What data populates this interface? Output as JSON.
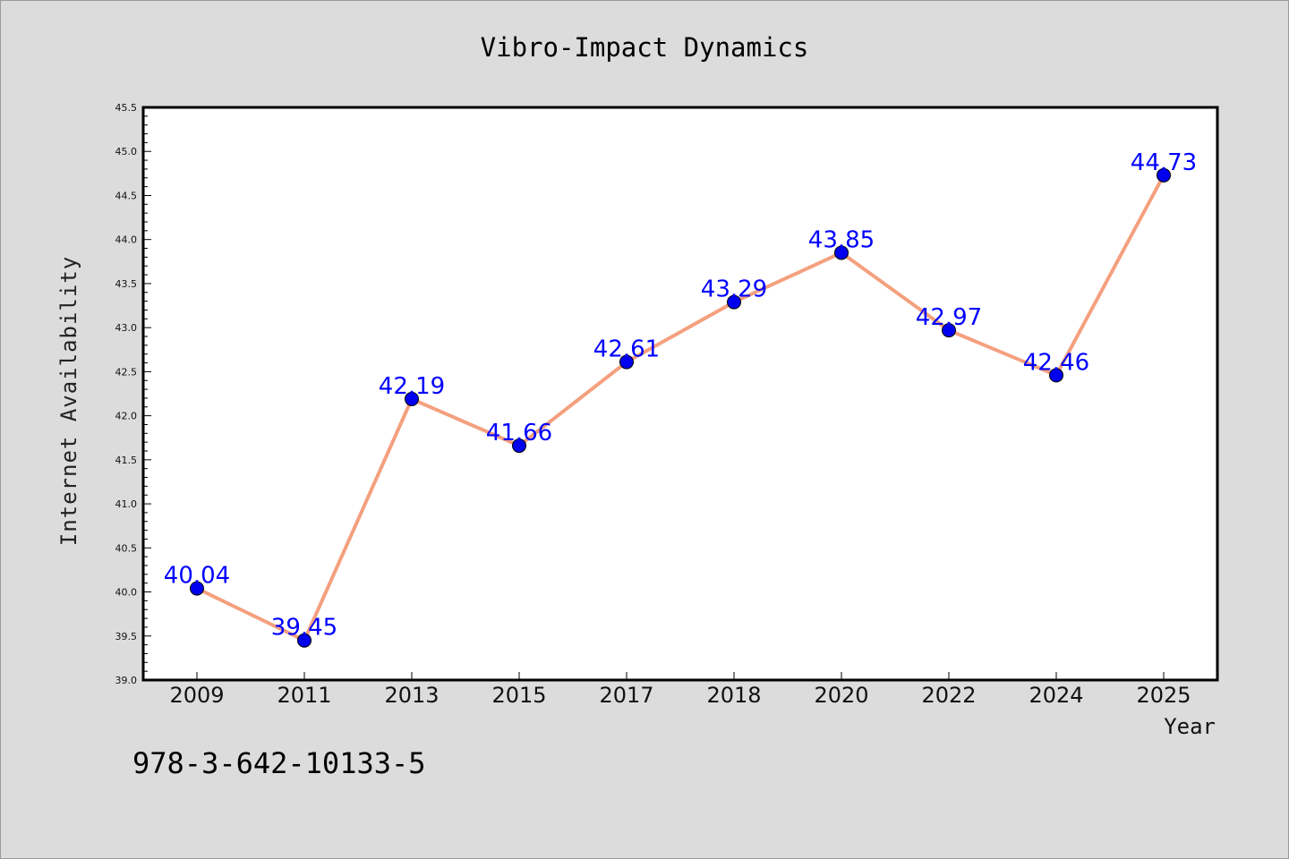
{
  "chart_data": {
    "type": "line",
    "title": "Vibro-Impact Dynamics",
    "xlabel": "Year",
    "ylabel": "Internet Availability",
    "categories": [
      "2009",
      "2011",
      "2013",
      "2015",
      "2017",
      "2018",
      "2020",
      "2022",
      "2024",
      "2025"
    ],
    "series": [
      {
        "values": [
          40.04,
          39.45,
          42.19,
          41.66,
          42.61,
          43.29,
          43.85,
          42.97,
          42.46,
          44.73
        ]
      }
    ],
    "data_labels": [
      "40.04",
      "39.45",
      "42.19",
      "41.66",
      "42.61",
      "43.29",
      "43.85",
      "42.97",
      "42.46",
      "44.73"
    ],
    "ylim": [
      39.0,
      45.5
    ],
    "yticks": [
      "39.0",
      "39.5",
      "40.0",
      "40.5",
      "41.0",
      "41.5",
      "42.0",
      "42.5",
      "43.0",
      "43.5",
      "44.0",
      "44.5",
      "45.0",
      "45.5"
    ],
    "grid": false,
    "legend": "none",
    "colors": {
      "line": "#f4a07e",
      "marker": "#0000ee",
      "label": "#0000ff",
      "background": "#dcdcdc",
      "plot_bg": "#ffffff"
    }
  },
  "annotation": "978-3-642-10133-5"
}
